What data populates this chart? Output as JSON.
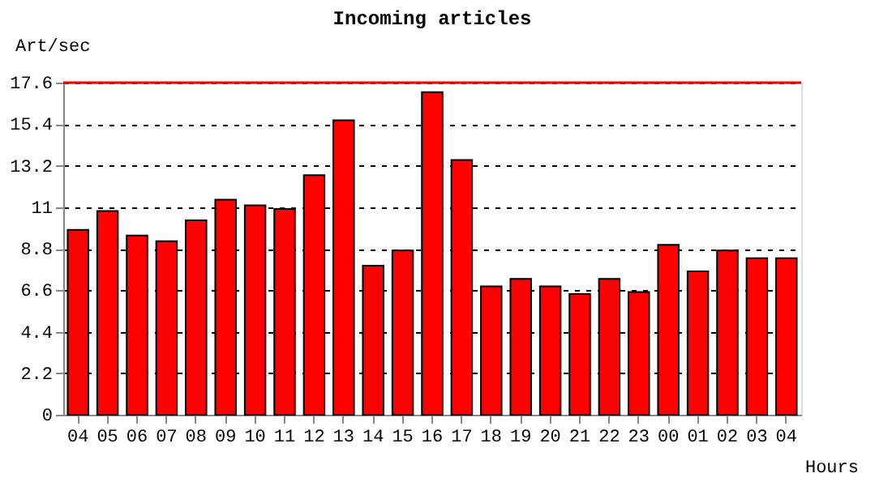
{
  "chart_data": {
    "type": "bar",
    "title": "Incoming articles",
    "ylabel": "Art/sec",
    "xlabel": "Hours",
    "categories": [
      "04",
      "05",
      "06",
      "07",
      "08",
      "09",
      "10",
      "11",
      "12",
      "13",
      "14",
      "15",
      "16",
      "17",
      "18",
      "19",
      "20",
      "21",
      "22",
      "23",
      "00",
      "01",
      "02",
      "03",
      "04"
    ],
    "values": [
      9.8,
      10.8,
      9.5,
      9.2,
      10.3,
      11.4,
      11.1,
      10.9,
      12.7,
      15.6,
      7.9,
      8.7,
      17.1,
      13.5,
      6.8,
      7.2,
      6.8,
      6.4,
      7.2,
      6.5,
      9.0,
      7.6,
      8.7,
      8.3,
      8.3
    ],
    "color": "#ff0000",
    "ylim": [
      0,
      17.6
    ],
    "yticks": [
      0,
      2.2,
      4.4,
      6.6,
      8.8,
      11,
      13.2,
      15.4,
      17.6
    ],
    "grid": "y",
    "ref_lines": [
      {
        "axis": "y",
        "value": 17.6,
        "color": "#ff0000",
        "line_style": "solid"
      }
    ]
  }
}
